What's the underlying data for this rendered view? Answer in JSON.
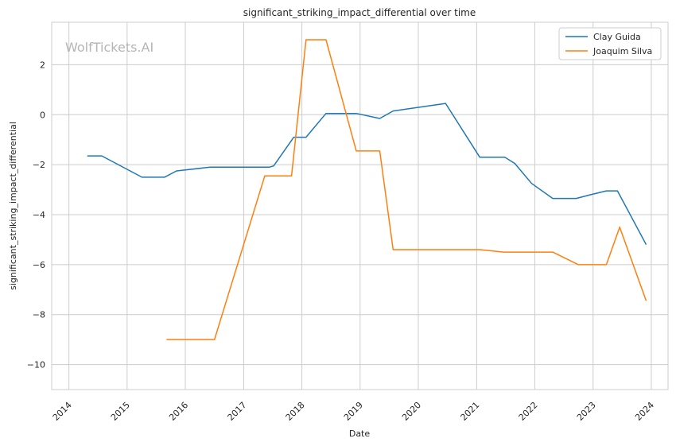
{
  "chart_data": {
    "type": "line",
    "title": "significant_striking_impact_differential over time",
    "xlabel": "Date",
    "ylabel": "significant_striking_impact_differential",
    "watermark": "WolfTickets.AI",
    "x_ticks": [
      "2014",
      "2015",
      "2016",
      "2017",
      "2018",
      "2019",
      "2020",
      "2021",
      "2022",
      "2023",
      "2024"
    ],
    "y_ticks": [
      -10,
      -8,
      -6,
      -4,
      -2,
      0,
      2
    ],
    "xlim": [
      "2013-09-15",
      "2024-04-15"
    ],
    "ylim": [
      -11,
      3.7
    ],
    "grid": true,
    "legend_position": "top-right",
    "series": [
      {
        "name": "Clay Guida",
        "color": "#1f77b4",
        "points": [
          [
            "2014-04-26",
            -1.65
          ],
          [
            "2014-07-26",
            -1.65
          ],
          [
            "2015-04-04",
            -2.5
          ],
          [
            "2015-08-23",
            -2.5
          ],
          [
            "2015-11-07",
            -2.25
          ],
          [
            "2016-06-04",
            -2.1
          ],
          [
            "2017-06-10",
            -2.1
          ],
          [
            "2017-07-08",
            -2.05
          ],
          [
            "2017-11-11",
            -0.9
          ],
          [
            "2018-01-27",
            -0.9
          ],
          [
            "2018-06-01",
            0.05
          ],
          [
            "2018-12-08",
            0.05
          ],
          [
            "2019-05-04",
            -0.15
          ],
          [
            "2019-07-27",
            0.15
          ],
          [
            "2020-06-20",
            0.45
          ],
          [
            "2021-01-20",
            -1.7
          ],
          [
            "2021-06-26",
            -1.7
          ],
          [
            "2021-08-28",
            -1.95
          ],
          [
            "2021-12-11",
            -2.75
          ],
          [
            "2022-04-23",
            -3.35
          ],
          [
            "2022-09-17",
            -3.35
          ],
          [
            "2022-12-17",
            -3.2
          ],
          [
            "2023-03-25",
            -3.05
          ],
          [
            "2023-06-03",
            -3.05
          ],
          [
            "2023-11-30",
            -5.2
          ]
        ]
      },
      {
        "name": "Joaquim Silva",
        "color": "#ff7f0e",
        "points": [
          [
            "2015-09-05",
            -9.0
          ],
          [
            "2016-07-02",
            -9.0
          ],
          [
            "2017-05-13",
            -2.45
          ],
          [
            "2017-10-28",
            -2.45
          ],
          [
            "2018-01-27",
            3.0
          ],
          [
            "2018-06-01",
            3.0
          ],
          [
            "2018-12-08",
            -1.45
          ],
          [
            "2019-05-04",
            -1.45
          ],
          [
            "2019-07-27",
            -5.4
          ],
          [
            "2021-01-20",
            -5.4
          ],
          [
            "2021-06-19",
            -5.5
          ],
          [
            "2022-04-23",
            -5.5
          ],
          [
            "2022-10-01",
            -6.0
          ],
          [
            "2023-03-25",
            -6.0
          ],
          [
            "2023-06-17",
            -4.5
          ],
          [
            "2023-11-30",
            -7.45
          ]
        ]
      }
    ]
  }
}
